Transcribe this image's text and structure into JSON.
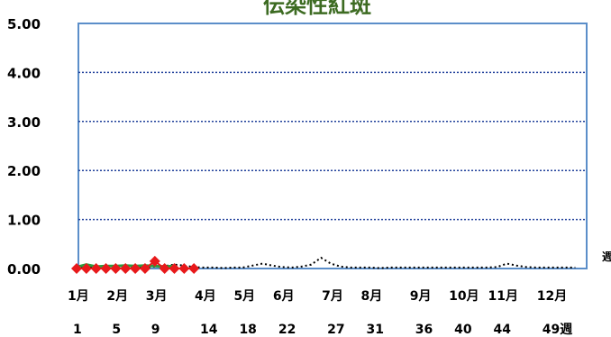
{
  "chart_data": {
    "type": "line",
    "title": "伝染性紅斑",
    "xlabel": "週",
    "ylim": [
      0,
      5
    ],
    "y_ticks": [
      "0.00",
      "1.00",
      "2.00",
      "3.00",
      "4.00",
      "5.00"
    ],
    "grid": true,
    "month_labels": [
      {
        "label": "1月",
        "week": 1
      },
      {
        "label": "2月",
        "week": 5
      },
      {
        "label": "3月",
        "week": 9
      },
      {
        "label": "4月",
        "week": 14
      },
      {
        "label": "5月",
        "week": 18
      },
      {
        "label": "6月",
        "week": 22
      },
      {
        "label": "7月",
        "week": 27
      },
      {
        "label": "8月",
        "week": 31
      },
      {
        "label": "9月",
        "week": 36
      },
      {
        "label": "10月",
        "week": 40
      },
      {
        "label": "11月",
        "week": 44
      },
      {
        "label": "12月",
        "week": 49
      }
    ],
    "week_labels": [
      {
        "label": "1",
        "week": 1
      },
      {
        "label": "5",
        "week": 5
      },
      {
        "label": "9",
        "week": 9
      },
      {
        "label": "14",
        "week": 14
      },
      {
        "label": "18",
        "week": 18
      },
      {
        "label": "22",
        "week": 22
      },
      {
        "label": "27",
        "week": 27
      },
      {
        "label": "31",
        "week": 31
      },
      {
        "label": "36",
        "week": 36
      },
      {
        "label": "40",
        "week": 40
      },
      {
        "label": "44",
        "week": 44
      },
      {
        "label": "49週",
        "week": 49
      }
    ],
    "series": [
      {
        "style": "dotted",
        "color": "#000000",
        "x": [
          1,
          2,
          3,
          4,
          5,
          6,
          7,
          8,
          9,
          10,
          11,
          12,
          13,
          14,
          15,
          16,
          17,
          18,
          19,
          20,
          21,
          22,
          23,
          24,
          25,
          26,
          27,
          28,
          29,
          30,
          31,
          32,
          33,
          34,
          35,
          36,
          37,
          38,
          39,
          40,
          41,
          42,
          43,
          44,
          45,
          46,
          47,
          48,
          49,
          50,
          51,
          52
        ],
        "values": [
          0.03,
          0.02,
          0.02,
          0.03,
          0.02,
          0.03,
          0.02,
          0.02,
          0.04,
          0.05,
          0.08,
          0.06,
          0.03,
          0.02,
          0.02,
          0.01,
          0.02,
          0.02,
          0.06,
          0.1,
          0.06,
          0.03,
          0.02,
          0.04,
          0.08,
          0.22,
          0.1,
          0.04,
          0.02,
          0.02,
          0.02,
          0.01,
          0.02,
          0.02,
          0.02,
          0.02,
          0.02,
          0.02,
          0.02,
          0.02,
          0.02,
          0.02,
          0.02,
          0.03,
          0.1,
          0.06,
          0.03,
          0.02,
          0.02,
          0.02,
          0.02,
          0.02
        ]
      },
      {
        "style": "solid",
        "color": "#2e9b3e",
        "x": [
          1,
          2,
          3,
          4,
          5,
          6,
          7,
          8,
          9,
          10,
          11
        ],
        "values": [
          0.03,
          0.08,
          0.04,
          0.05,
          0.05,
          0.06,
          0.05,
          0.06,
          0.05,
          0.04,
          0.05
        ]
      },
      {
        "style": "diamond",
        "color": "#e8191b",
        "x": [
          1,
          2,
          3,
          4,
          5,
          6,
          7,
          8,
          9,
          10,
          11,
          12,
          13
        ],
        "values": [
          0.0,
          0.0,
          0.0,
          0.0,
          0.0,
          0.0,
          0.0,
          0.0,
          0.15,
          0.0,
          0.0,
          0.0,
          0.0
        ]
      }
    ]
  }
}
